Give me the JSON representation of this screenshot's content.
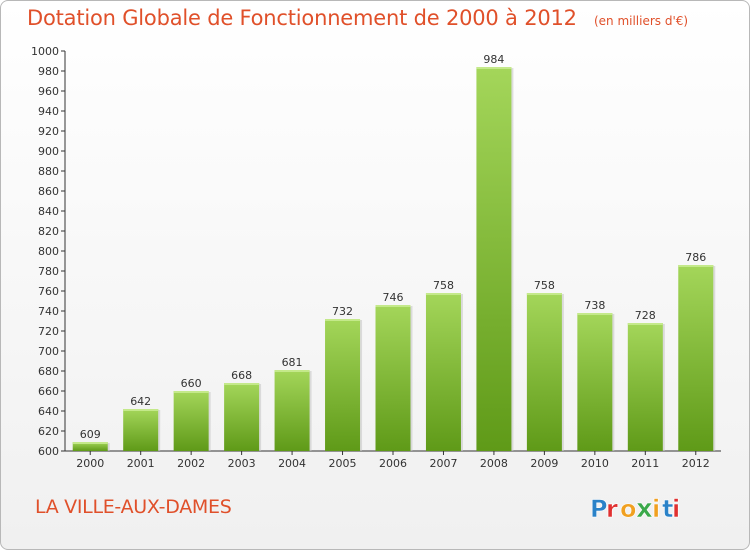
{
  "header": {
    "title": "Dotation Globale de Fonctionnement de 2000 à 2012",
    "unit": "(en milliers d'€)"
  },
  "footer": {
    "commune": "LA VILLE-AUX-DAMES",
    "logo_text": "Proxiti"
  },
  "colors": {
    "title": "#e0502a",
    "bar_top": "#a4d65a",
    "bar_bottom": "#5f9a18",
    "logo_letters": [
      "#2a82c8",
      "#e03030",
      "#f0a020",
      "#3aa84a",
      "#f0a020",
      "#2a82c8",
      "#e03030"
    ]
  },
  "chart_data": {
    "type": "bar",
    "categories": [
      "2000",
      "2001",
      "2002",
      "2003",
      "2004",
      "2005",
      "2006",
      "2007",
      "2008",
      "2009",
      "2010",
      "2011",
      "2012"
    ],
    "values": [
      609,
      642,
      660,
      668,
      681,
      732,
      746,
      758,
      984,
      758,
      738,
      728,
      786
    ],
    "title": "Dotation Globale de Fonctionnement de 2000 à 2012",
    "ylabel": "",
    "xlabel": "",
    "ylim": [
      600,
      1000
    ],
    "yticks": [
      600,
      620,
      640,
      660,
      680,
      700,
      720,
      740,
      760,
      780,
      800,
      820,
      840,
      860,
      880,
      900,
      920,
      940,
      960,
      980,
      1000
    ],
    "grid": false,
    "data_labels": true
  }
}
